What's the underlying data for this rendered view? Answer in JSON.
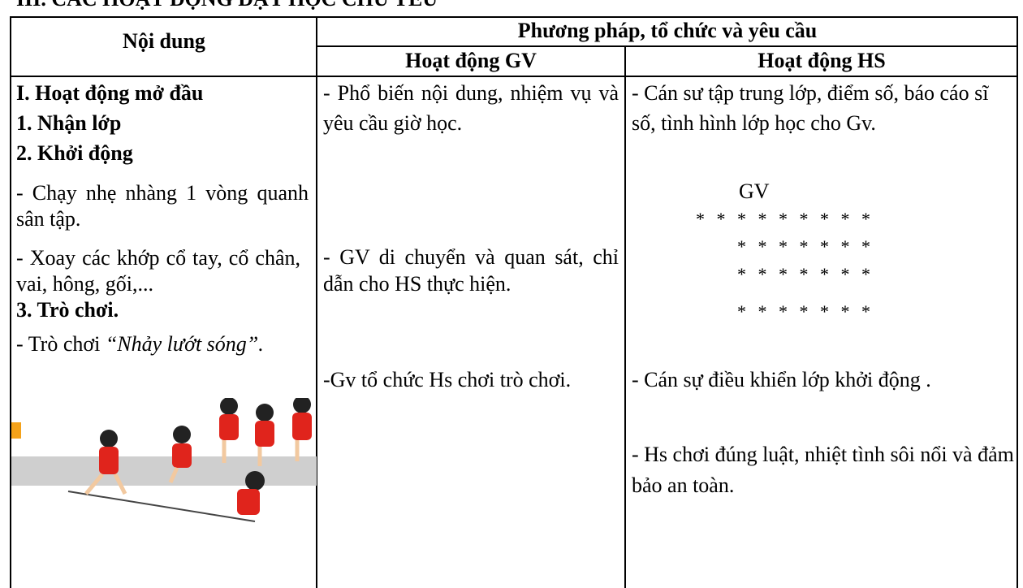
{
  "heading": "III. CÁC HOẠT ĐỘNG DẠY HỌC CHỦ YẾU",
  "table": {
    "header": {
      "content": "Nội dung",
      "method": "Phương pháp, tổ chức và yêu cầu",
      "gv": "Hoạt động GV",
      "hs": "Hoạt động HS"
    },
    "content": {
      "sections": [
        "I. Hoạt động mở đầu",
        "1. Nhận lớp",
        "2. Khởi động"
      ],
      "run": "- Chạy nhẹ nhàng 1 vòng quanh sân tập.",
      "joints": "- Xoay các khớp cổ tay, cổ chân, vai, hông, gối,...",
      "game_title": "3. Trò chơi.",
      "game_prefix": "- Trò chơi ",
      "game_name": "“Nhảy lướt sóng”."
    },
    "gv": [
      "- Phổ biến nội dung, nhiệm vụ và yêu cầu giờ học.",
      "- GV di chuyển và quan sát, chỉ dẫn cho HS thực hiện.",
      "-Gv tổ chức Hs chơi trò chơi."
    ],
    "hs": [
      "- Cán sư tập trung lớp, điểm số, báo cáo sĩ số, tình hình lớp học cho Gv.",
      "- Cán sự điều khiển lớp khởi động .",
      "- Hs chơi đúng luật, nhiệt tình sôi nổi và đảm bảo an toàn."
    ],
    "formation": {
      "label": "GV",
      "rows": [
        "* * * * * * * * *",
        "* * * * * * *",
        "* * * * * * *",
        "* * * * * * *"
      ]
    }
  }
}
